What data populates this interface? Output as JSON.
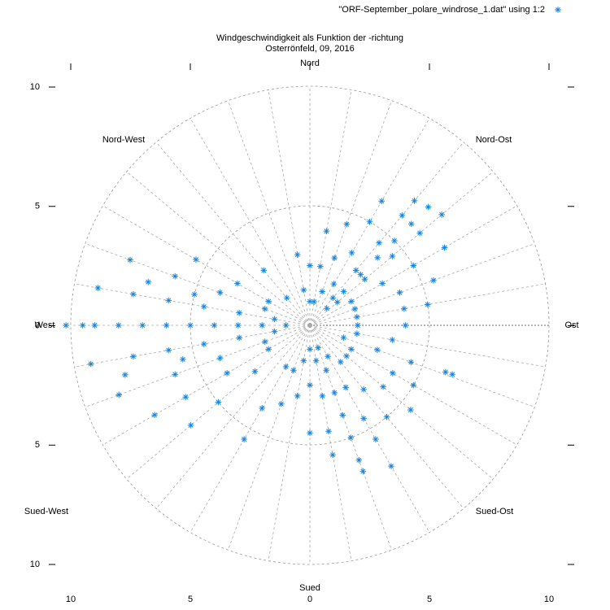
{
  "chart_data": {
    "type": "polar-scatter",
    "title": "Windgeschwindigkeit als Funktion der -richtung",
    "subtitle": "Osterrönfeld, 09, 2016",
    "directions": [
      "Ost",
      "Nord-Ost",
      "Nord",
      "Nord-West",
      "West",
      "Sued-West",
      "Sued",
      "Sued-Ost"
    ],
    "xlim": [
      -10,
      10
    ],
    "ylim": [
      -10,
      10
    ],
    "xticks": [
      {
        "value": -10,
        "label": "10"
      },
      {
        "value": -5,
        "label": "5"
      },
      0,
      5,
      10
    ],
    "yticks": [
      {
        "value": -10,
        "label": "10"
      },
      {
        "value": -5,
        "label": "5"
      },
      0,
      5,
      10
    ],
    "rgrid": [
      5,
      10
    ],
    "theta_grid_step": 10,
    "legend": "top-right",
    "series": [
      {
        "name": "\"ORF-September_polare_windrose_1.dat\" using 1:2",
        "color": "#1a86e0",
        "theta": [
          180,
          180,
          180,
          180,
          180,
          180,
          180,
          180,
          180,
          180,
          180,
          170,
          170,
          170,
          170,
          170,
          170,
          190,
          190,
          190,
          190,
          190,
          190,
          160,
          160,
          160,
          160,
          200,
          200,
          200,
          200,
          165,
          165,
          195,
          195,
          210,
          210,
          210,
          210,
          150,
          150,
          150,
          220,
          220,
          220,
          240,
          240,
          240,
          130,
          130,
          250,
          250,
          45,
          45,
          45,
          45,
          45,
          45,
          45,
          40,
          40,
          40,
          40,
          40,
          50,
          50,
          50,
          50,
          50,
          30,
          30,
          30,
          30,
          60,
          60,
          60,
          60,
          20,
          20,
          20,
          70,
          70,
          70,
          80,
          80,
          80,
          10,
          10,
          10,
          90,
          90,
          100,
          100,
          0,
          0,
          290,
          290,
          290,
          290,
          290,
          290,
          290,
          300,
          300,
          300,
          300,
          300,
          280,
          280,
          280,
          280,
          310,
          310,
          310,
          270,
          270,
          270,
          320,
          320,
          320,
          340,
          340,
          340,
          350,
          350,
          260,
          260,
          330,
          330,
          330,
          341,
          341
        ],
        "r": [
          1,
          2,
          3,
          4,
          5,
          6,
          7,
          8,
          9,
          9.5,
          10.2,
          1.5,
          3,
          4.5,
          6,
          7.5,
          9,
          1.5,
          3,
          4.5,
          6,
          7.5,
          9.3,
          2,
          4,
          6,
          8,
          2,
          4,
          6,
          8.5,
          5,
          7,
          5.5,
          8,
          2,
          4,
          6,
          7.5,
          2,
          3.5,
          5.5,
          3,
          5,
          6.5,
          2,
          4,
          5.5,
          1.5,
          3,
          2,
          3.5,
          1,
          2,
          3,
          4,
          5,
          6,
          7,
          1.5,
          3,
          4.5,
          6,
          7.2,
          1.5,
          3,
          4.5,
          6,
          6.8,
          2,
          3.5,
          5,
          6.5,
          2,
          3.5,
          5,
          6,
          2,
          4,
          5.5,
          1.5,
          3,
          4.5,
          1,
          2.5,
          4,
          2,
          4,
          5,
          1,
          2.5,
          1.5,
          3,
          2,
          4,
          1,
          2,
          3,
          4,
          5,
          6,
          6.5,
          1.5,
          3,
          4.5,
          5.5,
          6.8,
          1.5,
          3,
          4.5,
          5.5,
          2,
          3.5,
          5,
          1,
          2.5,
          4.5,
          2,
          4,
          5.5,
          1.5,
          3,
          4.5,
          2,
          3.5,
          1.5,
          3,
          2,
          4,
          5,
          6.3,
          6
        ]
      }
    ]
  }
}
